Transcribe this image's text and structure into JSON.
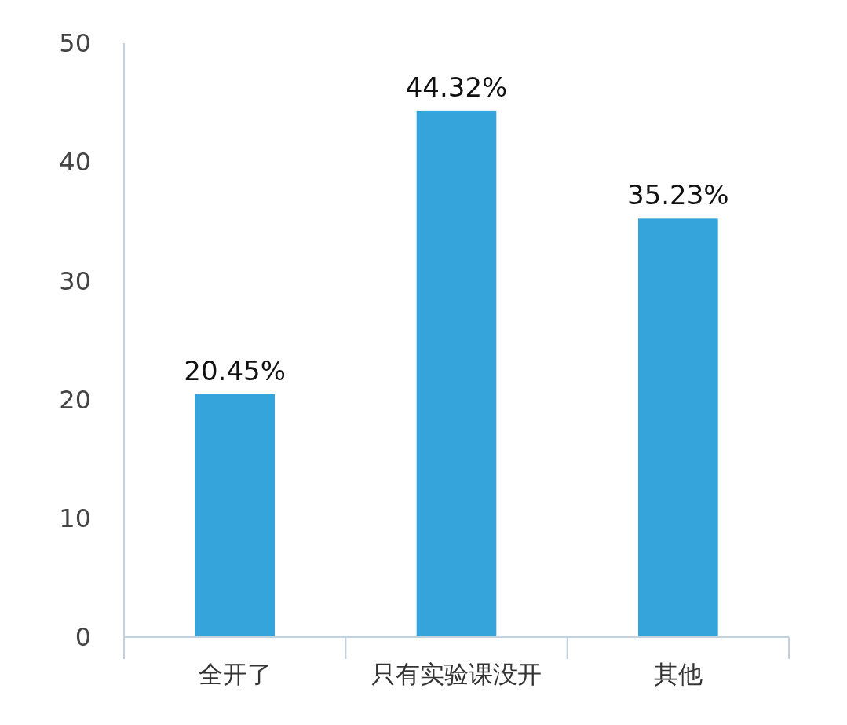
{
  "chart_data": {
    "type": "bar",
    "categories": [
      "全开了",
      "只有实验课没开",
      "其他"
    ],
    "values": [
      20.45,
      44.32,
      35.23
    ],
    "value_labels": [
      "20.45%",
      "44.32%",
      "35.23%"
    ],
    "color": "#34a4db",
    "ylim": [
      0,
      50
    ],
    "yticks": [
      0,
      10,
      20,
      30,
      40,
      50
    ],
    "grid": false
  }
}
